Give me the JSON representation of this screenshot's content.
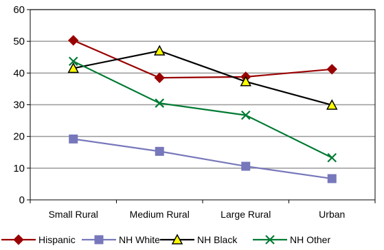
{
  "chart_data": {
    "type": "line",
    "title": "",
    "xlabel": "",
    "ylabel": "",
    "categories": [
      "Small Rural",
      "Medium Rural",
      "Large Rural",
      "Urban"
    ],
    "ylim": [
      0,
      60
    ],
    "yticks": [
      0,
      10,
      20,
      30,
      40,
      50,
      60
    ],
    "grid": true,
    "legend_position": "bottom",
    "series": [
      {
        "name": "Hispanic",
        "values": [
          50.3,
          38.5,
          38.8,
          41.2
        ],
        "color": "#990000",
        "marker": "diamond"
      },
      {
        "name": "NH White",
        "values": [
          19.2,
          15.3,
          10.6,
          6.7
        ],
        "color": "#7777bb",
        "marker": "square"
      },
      {
        "name": "NH Black",
        "values": [
          41.5,
          47.0,
          37.3,
          29.9
        ],
        "color": "#000000",
        "marker": "triangle",
        "marker_fill": "#ffff00"
      },
      {
        "name": "NH Other",
        "values": [
          43.7,
          30.5,
          26.7,
          13.3
        ],
        "color": "#007a33",
        "marker": "x"
      }
    ]
  }
}
